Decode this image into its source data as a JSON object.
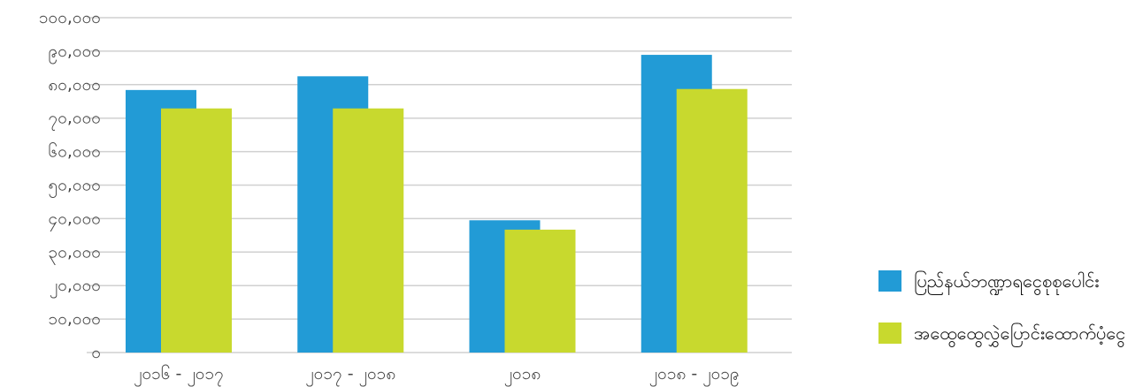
{
  "chart_data": {
    "type": "bar",
    "title": "",
    "xlabel": "",
    "ylabel": "",
    "categories": [
      "၂၀၁၆ - ၂၀၁၇",
      "၂၀၁၇ - ၂၀၁၈",
      "၂၀၁၈",
      "၂၀၁၈ - ၂၀၁၉"
    ],
    "series": [
      {
        "name": "ပြည်နယ်ဘဏ္ဍာရငွေစုစုပေါင်း",
        "values": [
          78400,
          82500,
          39500,
          88900
        ]
      },
      {
        "name": "အထွေထွေလွှဲပြောင်းထောက်ပံ့ငွေ",
        "values": [
          72900,
          72900,
          36700,
          78700
        ]
      }
    ],
    "ylim": [
      0,
      100000
    ],
    "yticks": [
      {
        "value": 0,
        "label": "၀"
      },
      {
        "value": 10000,
        "label": "၁၀,၀၀၀"
      },
      {
        "value": 20000,
        "label": "၂၀,၀၀၀"
      },
      {
        "value": 30000,
        "label": "၃၀,၀၀၀"
      },
      {
        "value": 40000,
        "label": "၄၀,၀၀၀"
      },
      {
        "value": 50000,
        "label": "၅၀,၀၀၀"
      },
      {
        "value": 60000,
        "label": "၆၀,၀၀၀"
      },
      {
        "value": 70000,
        "label": "၇၀,၀၀၀"
      },
      {
        "value": 80000,
        "label": "၈၀,၀၀၀"
      },
      {
        "value": 90000,
        "label": "၉၀,၀၀၀"
      },
      {
        "value": 100000,
        "label": "၁၀၀,၀၀၀"
      }
    ],
    "grid": true,
    "legend_position": "right",
    "colors": [
      "#229bd6",
      "#c8d92e"
    ],
    "gridline_color": "#d0d0d0"
  }
}
